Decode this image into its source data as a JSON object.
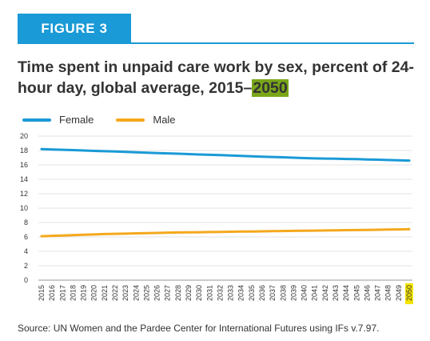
{
  "figure_label": "FIGURE 3",
  "title_main": "Time spent in unpaid care work by sex, percent of 24-hour day, global average, 2015–",
  "title_highlight": "2050",
  "source": "Source: UN Women and the Pardee Center for International Futures using IFs v.7.97.",
  "colors": {
    "accent": "#1a9ad6",
    "highlight": "#7aa61a",
    "year_highlight": "#f5e400",
    "female": "#1a9ad6",
    "male": "#f5a81c"
  },
  "chart_data": {
    "type": "line",
    "x": [
      2015,
      2016,
      2017,
      2018,
      2019,
      2020,
      2021,
      2022,
      2023,
      2024,
      2025,
      2026,
      2027,
      2028,
      2029,
      2030,
      2031,
      2032,
      2033,
      2034,
      2035,
      2036,
      2037,
      2038,
      2039,
      2040,
      2041,
      2042,
      2043,
      2044,
      2045,
      2046,
      2047,
      2048,
      2049,
      2050
    ],
    "x_tick_labels": [
      "2015",
      "2016",
      "2017",
      "2018",
      "2019",
      "2020",
      "2021",
      "2022",
      "2023",
      "2024",
      "2025",
      "2026",
      "2027",
      "2028",
      "2029",
      "2030",
      "2031",
      "2032",
      "2033",
      "2034",
      "2035",
      "2036",
      "2037",
      "2038",
      "2039",
      "2040",
      "2041",
      "2042",
      "2043",
      "2044",
      "2045",
      "2046",
      "2047",
      "2048",
      "2049",
      "2050"
    ],
    "highlight_tick": "2050",
    "ylim": [
      0,
      20
    ],
    "y_ticks": [
      "0",
      "2",
      "4",
      "6",
      "8",
      "10",
      "12",
      "14",
      "16",
      "18",
      "20"
    ],
    "grid": true,
    "legend_position": "top-left",
    "series": [
      {
        "name": "Female",
        "color": "#1a9ad6",
        "values": [
          18.2,
          18.15,
          18.1,
          18.05,
          18.0,
          17.95,
          17.9,
          17.85,
          17.8,
          17.75,
          17.7,
          17.65,
          17.6,
          17.55,
          17.5,
          17.45,
          17.4,
          17.35,
          17.3,
          17.25,
          17.2,
          17.15,
          17.1,
          17.05,
          17.0,
          16.95,
          16.9,
          16.88,
          16.85,
          16.82,
          16.8,
          16.76,
          16.72,
          16.68,
          16.65,
          16.6
        ]
      },
      {
        "name": "Male",
        "color": "#f5a81c",
        "values": [
          6.1,
          6.15,
          6.2,
          6.25,
          6.3,
          6.35,
          6.4,
          6.43,
          6.46,
          6.5,
          6.53,
          6.56,
          6.6,
          6.62,
          6.64,
          6.66,
          6.68,
          6.7,
          6.72,
          6.74,
          6.76,
          6.78,
          6.8,
          6.82,
          6.84,
          6.86,
          6.88,
          6.9,
          6.92,
          6.94,
          6.96,
          6.98,
          7.0,
          7.02,
          7.05,
          7.08
        ]
      }
    ]
  }
}
